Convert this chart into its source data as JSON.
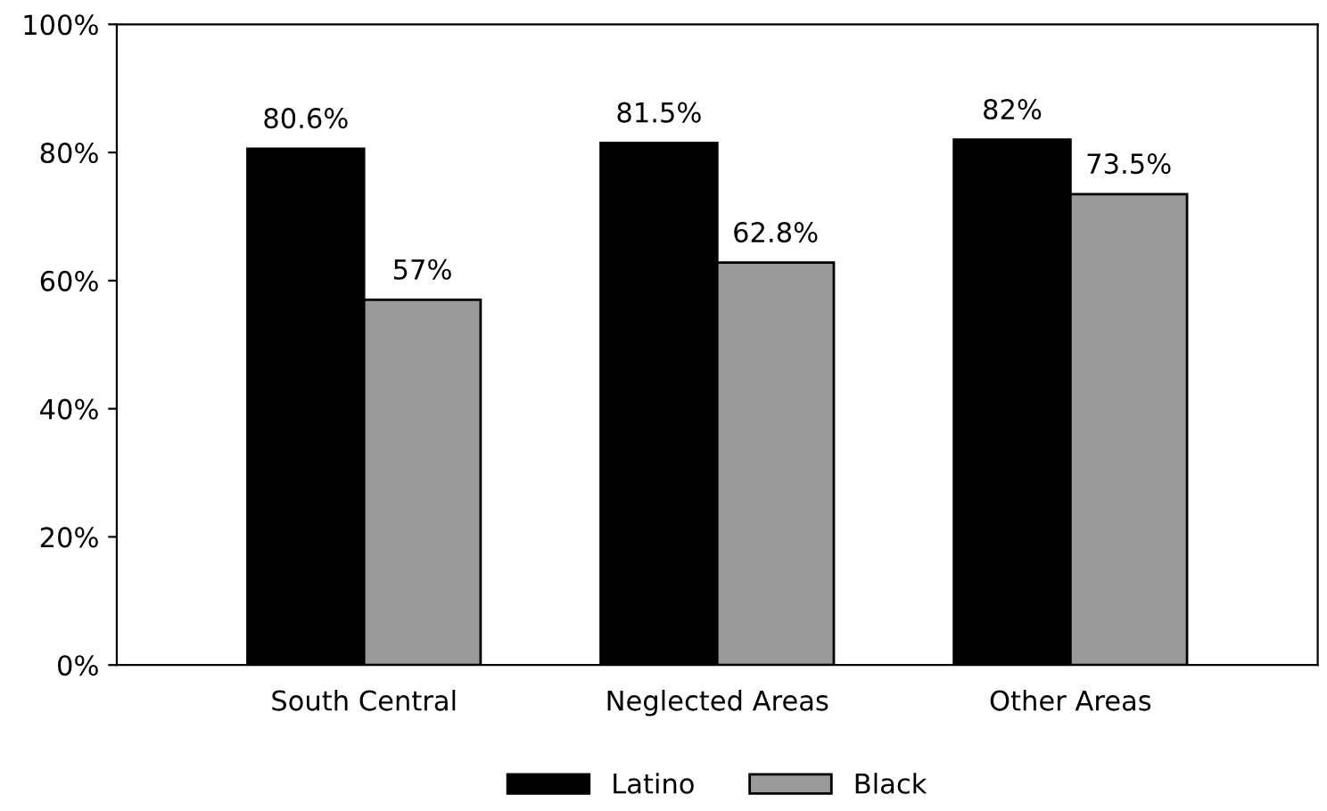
{
  "chart_data": {
    "type": "bar",
    "categories": [
      "South Central",
      "Neglected Areas",
      "Other Areas"
    ],
    "series": [
      {
        "name": "Latino",
        "color": "#000000",
        "values": [
          80.6,
          81.5,
          82
        ],
        "value_labels": [
          "80.6%",
          "81.5%",
          "82%"
        ]
      },
      {
        "name": "Black",
        "color": "#9a9a9a",
        "values": [
          57,
          62.8,
          73.5
        ],
        "value_labels": [
          "57%",
          "62.8%",
          "73.5%"
        ]
      }
    ],
    "ylim": [
      0,
      100
    ],
    "yticks": [
      {
        "value": 0,
        "label": "0%"
      },
      {
        "value": 20,
        "label": "20%"
      },
      {
        "value": 40,
        "label": "40%"
      },
      {
        "value": 60,
        "label": "60%"
      },
      {
        "value": 80,
        "label": "80%"
      },
      {
        "value": 100,
        "label": "100%"
      }
    ],
    "legend": "bottom",
    "grid": false
  }
}
